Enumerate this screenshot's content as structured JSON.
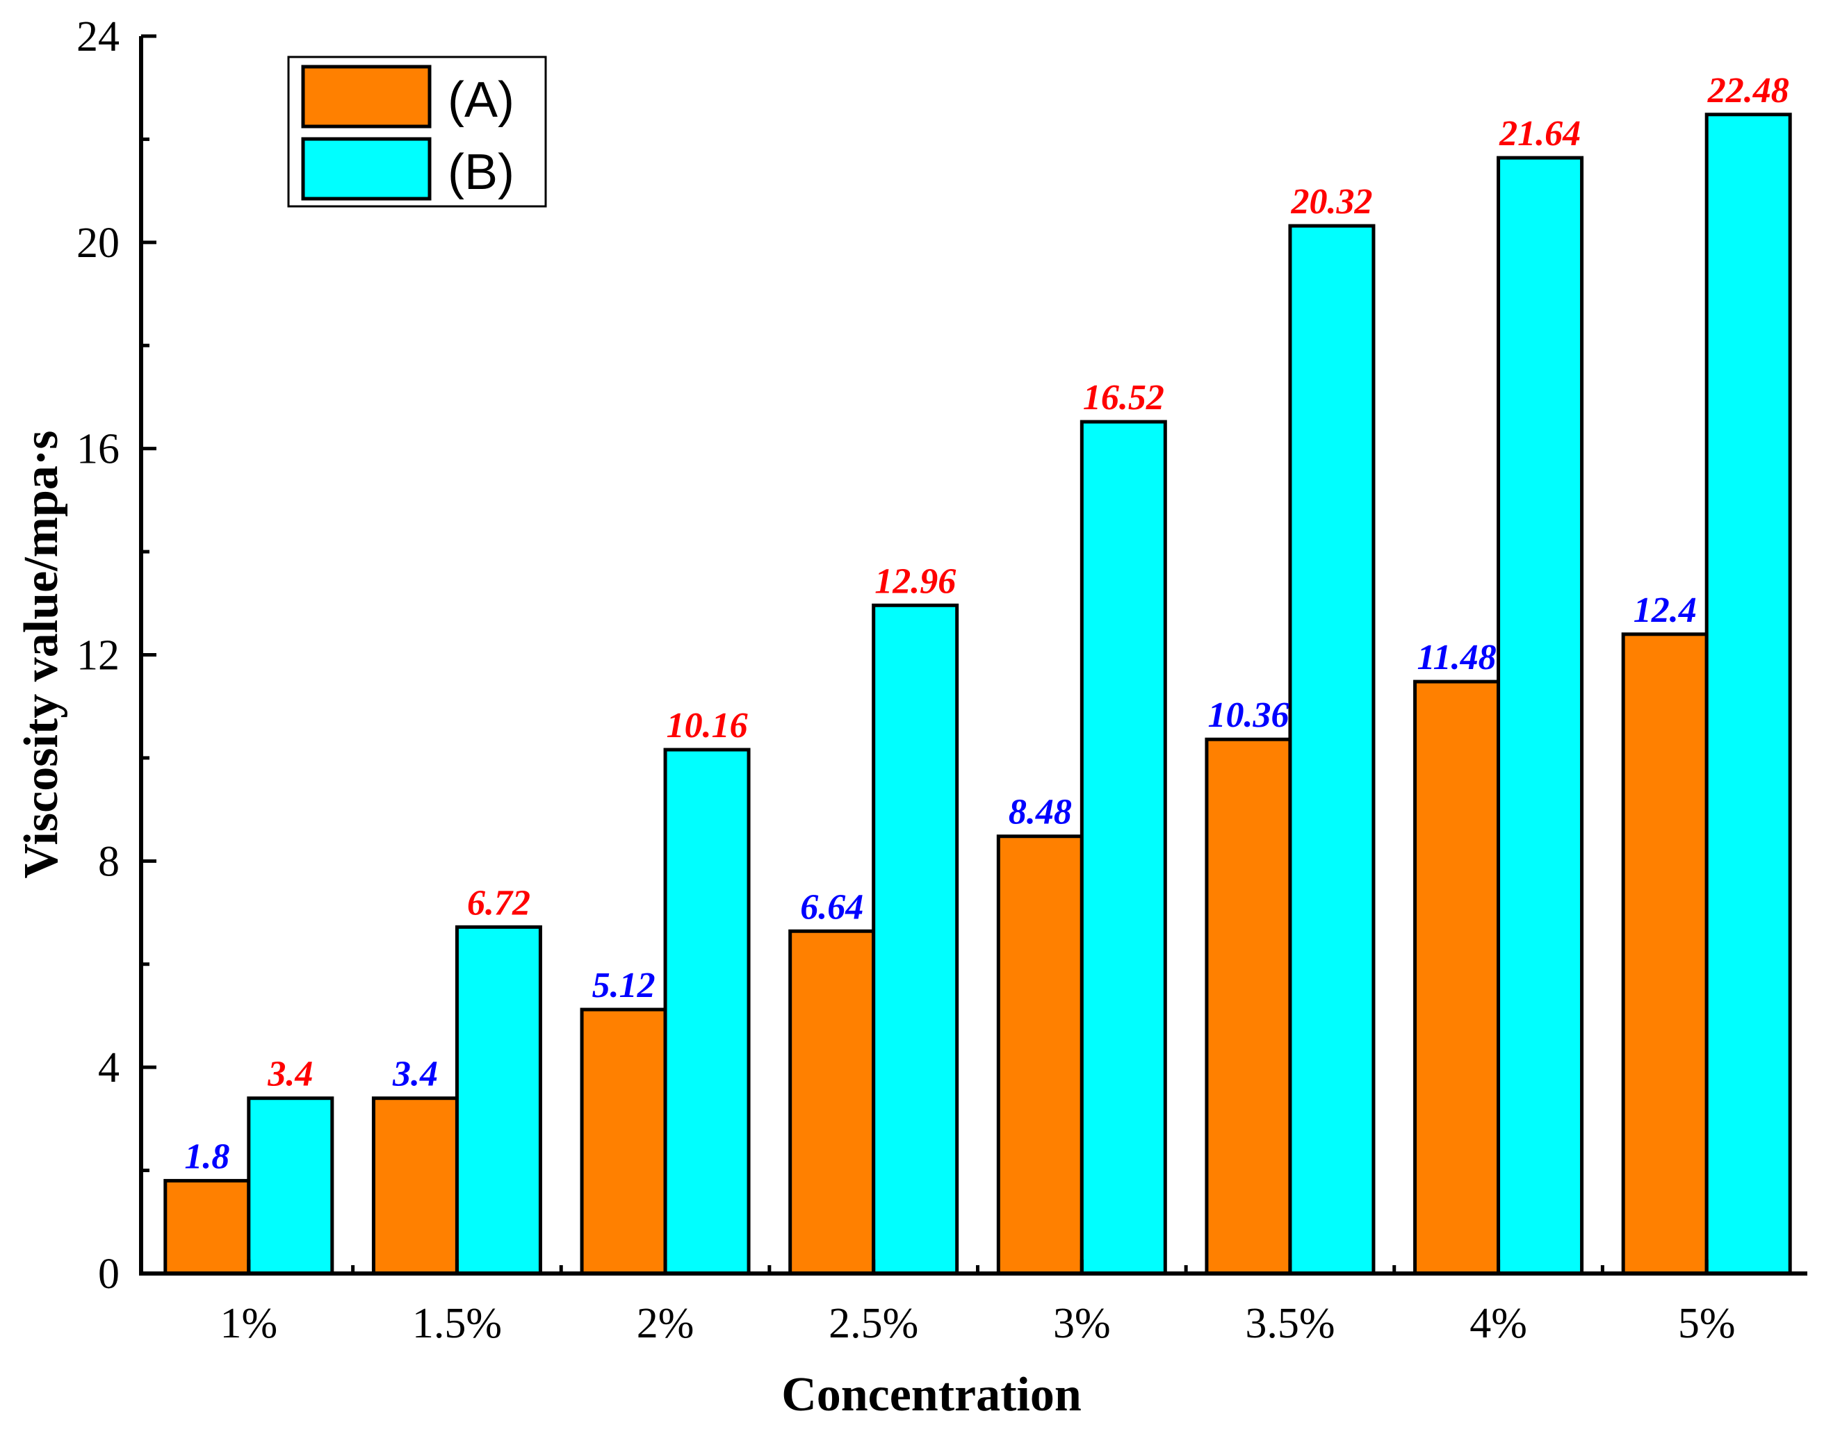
{
  "chart_data": {
    "type": "bar",
    "title": "",
    "xlabel": "Concentration",
    "ylabel": "Viscosity value/mpa·s",
    "categories": [
      "1%",
      "1.5%",
      "2%",
      "2.5%",
      "3%",
      "3.5%",
      "4%",
      "5%"
    ],
    "ylim": [
      0,
      24
    ],
    "yticks": [
      0,
      4,
      8,
      12,
      16,
      20,
      24
    ],
    "ytick_labels": [
      "0",
      "4",
      "8",
      "12",
      "16",
      "20",
      "24"
    ],
    "grid": false,
    "legend_position": "top-left",
    "series": [
      {
        "name": "(A)",
        "color": "#FF8000",
        "label_color": "#0000FF",
        "values": [
          1.8,
          3.4,
          5.12,
          6.64,
          8.48,
          10.36,
          11.48,
          12.4
        ],
        "value_labels": [
          "1.8",
          "3.4",
          "5.12",
          "6.64",
          "8.48",
          "10.36",
          "11.48",
          "12.4"
        ]
      },
      {
        "name": "(B)",
        "color": "#00FFFF",
        "label_color": "#FF0000",
        "values": [
          3.4,
          6.72,
          10.16,
          12.96,
          16.52,
          20.32,
          21.64,
          22.48
        ],
        "value_labels": [
          "3.4",
          "6.72",
          "10.16",
          "12.96",
          "16.52",
          "20.32",
          "21.64",
          "22.48"
        ]
      }
    ]
  }
}
